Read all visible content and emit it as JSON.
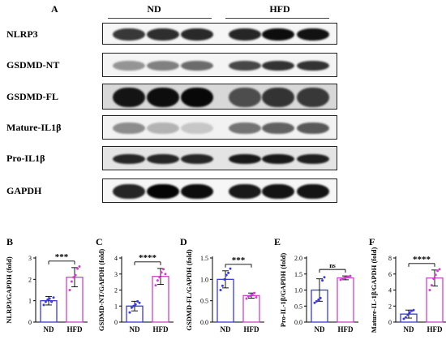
{
  "panel_a": {
    "letter": "A",
    "groups": [
      "ND",
      "HFD"
    ],
    "blots": [
      {
        "label": "NLRP3",
        "bg": "#f6f6f6",
        "intensity": [
          0.78,
          0.82,
          0.84,
          0.85,
          0.95,
          0.93
        ],
        "thickness": 0.55
      },
      {
        "label": "GSDMD-NT",
        "bg": "#f4f4f4",
        "intensity": [
          0.42,
          0.5,
          0.58,
          0.72,
          0.8,
          0.8
        ],
        "thickness": 0.4
      },
      {
        "label": "GSDMD-FL",
        "bg": "#d8d8d8",
        "intensity": [
          0.92,
          0.95,
          0.97,
          0.7,
          0.8,
          0.78
        ],
        "thickness": 0.75
      },
      {
        "label": "Mature-IL1β",
        "bg": "#f2f2f2",
        "intensity": [
          0.45,
          0.3,
          0.22,
          0.55,
          0.62,
          0.65
        ],
        "thickness": 0.45
      },
      {
        "label": "Pro-IL1β",
        "bg": "#e4e4e4",
        "intensity": [
          0.85,
          0.85,
          0.85,
          0.9,
          0.9,
          0.88
        ],
        "thickness": 0.4
      },
      {
        "label": "GAPDH",
        "bg": "#f6f6f6",
        "intensity": [
          0.85,
          0.98,
          0.95,
          0.9,
          0.92,
          0.92
        ],
        "thickness": 0.6
      }
    ]
  },
  "chart_data": [
    {
      "type": "bar",
      "letter": "B",
      "categories": [
        "ND",
        "HFD"
      ],
      "values": [
        1.0,
        2.1
      ],
      "errors": [
        0.2,
        0.45
      ],
      "points": [
        [
          0.8,
          0.95,
          1.05,
          1.1,
          0.95,
          1.15
        ],
        [
          1.5,
          1.9,
          2.1,
          2.2,
          2.5,
          2.6
        ]
      ],
      "colors": [
        "#3b3bd6",
        "#cc44cc"
      ],
      "ylabel": "NLRP3/GAPDH (fold)",
      "ylim": [
        0,
        3
      ],
      "yticks": [
        "0",
        "1",
        "2",
        "3"
      ],
      "significance": "***"
    },
    {
      "type": "bar",
      "letter": "C",
      "categories": [
        "ND",
        "HFD"
      ],
      "values": [
        1.0,
        2.85
      ],
      "errors": [
        0.3,
        0.5
      ],
      "points": [
        [
          0.6,
          0.9,
          1.0,
          1.1,
          1.3,
          1.2
        ],
        [
          2.3,
          2.6,
          2.8,
          3.1,
          3.3,
          3.0
        ]
      ],
      "colors": [
        "#3b3bd6",
        "#cc44cc"
      ],
      "ylabel": "GSDMD-NT/GAPDH (fold)",
      "ylim": [
        0,
        4
      ],
      "yticks": [
        "0",
        "1",
        "2",
        "3",
        "4"
      ],
      "significance": "****"
    },
    {
      "type": "bar",
      "letter": "D",
      "categories": [
        "ND",
        "HFD"
      ],
      "values": [
        1.0,
        0.62
      ],
      "errors": [
        0.2,
        0.06
      ],
      "points": [
        [
          0.75,
          0.85,
          1.0,
          1.1,
          1.15,
          1.25
        ],
        [
          0.55,
          0.6,
          0.62,
          0.65,
          0.68,
          0.58
        ]
      ],
      "colors": [
        "#3b3bd6",
        "#cc44cc"
      ],
      "ylabel": "GSDMD-FL/GAPDH (fold)",
      "ylim": [
        0,
        1.5
      ],
      "yticks": [
        "0.0",
        "0.5",
        "1.0",
        "1.5"
      ],
      "significance": "***"
    },
    {
      "type": "bar",
      "letter": "E",
      "categories": [
        "ND",
        "HFD"
      ],
      "values": [
        1.0,
        1.38
      ],
      "errors": [
        0.35,
        0.06
      ],
      "points": [
        [
          0.6,
          0.65,
          0.7,
          0.75,
          1.3,
          1.4
        ],
        [
          1.32,
          1.35,
          1.38,
          1.4,
          1.42,
          1.44
        ]
      ],
      "colors": [
        "#3b3bd6",
        "#cc44cc"
      ],
      "ylabel": "Pro-IL-1β/GAPDH (fold)",
      "ylim": [
        0,
        2.0
      ],
      "yticks": [
        "0.0",
        "0.5",
        "1.0",
        "1.5",
        "2.0"
      ],
      "significance": "ns"
    },
    {
      "type": "bar",
      "letter": "F",
      "categories": [
        "ND",
        "HFD"
      ],
      "values": [
        1.0,
        5.5
      ],
      "errors": [
        0.5,
        1.0
      ],
      "points": [
        [
          0.4,
          0.6,
          0.9,
          1.2,
          1.4,
          1.5
        ],
        [
          4.0,
          4.6,
          5.4,
          5.9,
          6.4,
          6.6
        ]
      ],
      "colors": [
        "#3b3bd6",
        "#cc44cc"
      ],
      "ylabel": "Mature-IL-1β/GAPDH (fold)",
      "ylim": [
        0,
        8
      ],
      "yticks": [
        "0",
        "2",
        "4",
        "6",
        "8"
      ],
      "significance": "****"
    }
  ]
}
